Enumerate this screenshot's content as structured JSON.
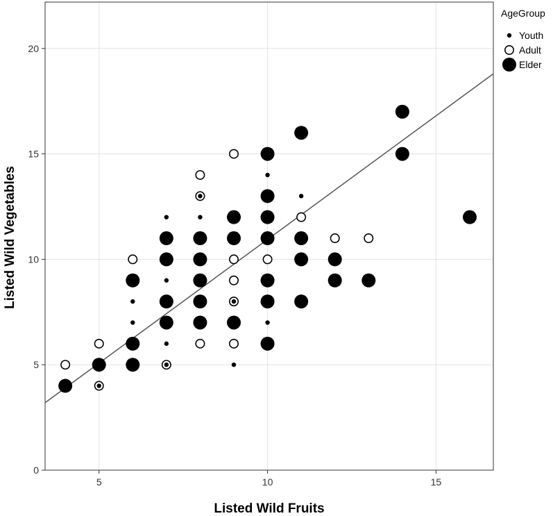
{
  "chart_data": {
    "type": "scatter",
    "xlabel": "Listed Wild Fruits",
    "ylabel": "Listed Wild Vegetables",
    "xlim": [
      3.4,
      16.7
    ],
    "ylim": [
      0,
      22.2
    ],
    "xticks": [
      5,
      10,
      15
    ],
    "yticks": [
      0,
      5,
      10,
      15,
      20
    ],
    "grid": true,
    "legend": {
      "title": "AgeGroup",
      "placement": "top-right"
    },
    "series": [
      {
        "name": "Youth",
        "marker": "small-filled",
        "color": "#000000",
        "points": [
          [
            5,
            4
          ],
          [
            6,
            8
          ],
          [
            6,
            7
          ],
          [
            7,
            12
          ],
          [
            7,
            9
          ],
          [
            7,
            6
          ],
          [
            7,
            5
          ],
          [
            8,
            13
          ],
          [
            8,
            12
          ],
          [
            9,
            8
          ],
          [
            9,
            5
          ],
          [
            10,
            14
          ],
          [
            10,
            7
          ],
          [
            11,
            13
          ]
        ]
      },
      {
        "name": "Adult",
        "marker": "hollow",
        "color": "#000000",
        "points": [
          [
            4,
            5
          ],
          [
            5,
            6
          ],
          [
            5,
            4
          ],
          [
            6,
            10
          ],
          [
            7,
            5
          ],
          [
            8,
            14
          ],
          [
            8,
            13
          ],
          [
            8,
            6
          ],
          [
            9,
            15
          ],
          [
            9,
            10
          ],
          [
            9,
            9
          ],
          [
            9,
            8
          ],
          [
            9,
            6
          ],
          [
            10,
            10
          ],
          [
            11,
            12
          ],
          [
            12,
            11
          ],
          [
            13,
            11
          ]
        ]
      },
      {
        "name": "Elder",
        "marker": "large-filled",
        "color": "#000000",
        "points": [
          [
            4,
            4
          ],
          [
            5,
            5
          ],
          [
            6,
            9
          ],
          [
            6,
            6
          ],
          [
            6,
            5
          ],
          [
            7,
            11
          ],
          [
            7,
            10
          ],
          [
            7,
            8
          ],
          [
            7,
            7
          ],
          [
            8,
            11
          ],
          [
            8,
            10
          ],
          [
            8,
            9
          ],
          [
            8,
            8
          ],
          [
            8,
            7
          ],
          [
            9,
            12
          ],
          [
            9,
            11
          ],
          [
            9,
            7
          ],
          [
            10,
            15
          ],
          [
            10,
            13
          ],
          [
            10,
            12
          ],
          [
            10,
            11
          ],
          [
            10,
            9
          ],
          [
            10,
            8
          ],
          [
            10,
            6
          ],
          [
            11,
            16
          ],
          [
            11,
            11
          ],
          [
            11,
            10
          ],
          [
            11,
            8
          ],
          [
            12,
            10
          ],
          [
            12,
            9
          ],
          [
            13,
            9
          ],
          [
            14,
            17
          ],
          [
            14,
            15
          ],
          [
            16,
            12
          ]
        ]
      }
    ],
    "fit_line": {
      "type": "linear",
      "x": [
        3.4,
        16.7
      ],
      "y": [
        3.2,
        18.8
      ],
      "color": "#555555"
    }
  }
}
